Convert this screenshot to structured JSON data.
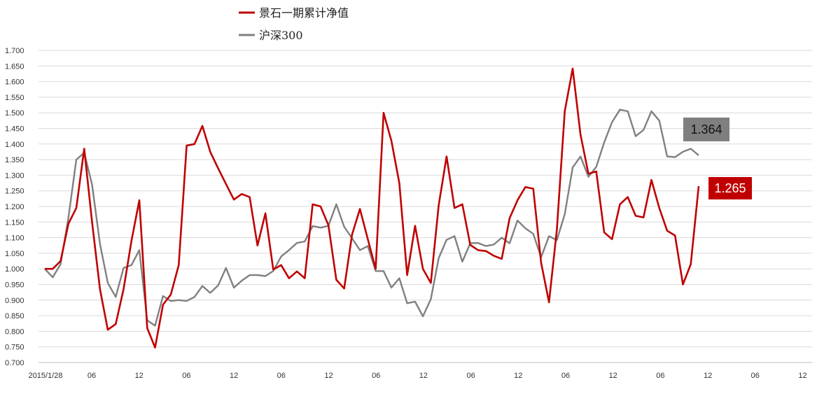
{
  "chart_data": {
    "type": "line",
    "title": "",
    "xlabel": "",
    "ylabel": "",
    "ylim": [
      0.7,
      1.7
    ],
    "y_ticks": [
      "1.700",
      "1.650",
      "1.600",
      "1.550",
      "1.500",
      "1.450",
      "1.400",
      "1.350",
      "1.300",
      "1.250",
      "1.200",
      "1.150",
      "1.100",
      "1.050",
      "1.000",
      "0.950",
      "0.900",
      "0.850",
      "0.800",
      "0.750",
      "0.700"
    ],
    "x_tick_labels": [
      "2015/1/28",
      "06",
      "12",
      "06",
      "12",
      "06",
      "12",
      "06",
      "12",
      "06",
      "12",
      "06",
      "12",
      "06",
      "12",
      "06",
      "12"
    ],
    "grid": "horizontal",
    "legend_position": "top",
    "series": [
      {
        "name": "景石一期累计净值",
        "color": "#c00000",
        "values": [
          1.0,
          1.0,
          1.025,
          1.145,
          1.195,
          1.385,
          1.15,
          0.935,
          0.805,
          0.823,
          0.935,
          1.09,
          1.22,
          0.81,
          0.748,
          0.885,
          0.918,
          1.012,
          1.395,
          1.4,
          1.458,
          1.375,
          1.322,
          1.272,
          1.222,
          1.24,
          1.23,
          1.075,
          1.178,
          0.998,
          1.012,
          0.97,
          0.992,
          0.97,
          1.207,
          1.2,
          1.14,
          0.965,
          0.937,
          1.11,
          1.192,
          1.095,
          1.0,
          1.5,
          1.41,
          1.275,
          0.98,
          1.138,
          1.0,
          0.955,
          1.205,
          1.36,
          1.195,
          1.207,
          1.077,
          1.06,
          1.057,
          1.042,
          1.032,
          1.162,
          1.22,
          1.262,
          1.257,
          1.02,
          0.893,
          1.125,
          1.505,
          1.642,
          1.43,
          1.305,
          1.312,
          1.117,
          1.095,
          1.207,
          1.23,
          1.17,
          1.165,
          1.285,
          1.195,
          1.122,
          1.107,
          0.95,
          1.015,
          1.265
        ]
      },
      {
        "name": "沪深300",
        "color": "#808080",
        "values": [
          1.0,
          0.973,
          1.015,
          1.165,
          1.35,
          1.372,
          1.27,
          1.08,
          0.955,
          0.91,
          1.003,
          1.012,
          1.06,
          0.835,
          0.818,
          0.913,
          0.897,
          0.9,
          0.897,
          0.91,
          0.945,
          0.923,
          0.947,
          1.003,
          0.94,
          0.962,
          0.98,
          0.98,
          0.977,
          0.993,
          1.04,
          1.06,
          1.083,
          1.088,
          1.137,
          1.132,
          1.138,
          1.207,
          1.135,
          1.098,
          1.06,
          1.073,
          0.993,
          0.993,
          0.94,
          0.97,
          0.89,
          0.895,
          0.848,
          0.903,
          1.035,
          1.093,
          1.105,
          1.023,
          1.082,
          1.083,
          1.073,
          1.078,
          1.1,
          1.082,
          1.155,
          1.13,
          1.112,
          1.037,
          1.105,
          1.092,
          1.175,
          1.325,
          1.36,
          1.295,
          1.327,
          1.405,
          1.47,
          1.51,
          1.505,
          1.425,
          1.445,
          1.505,
          1.475,
          1.36,
          1.358,
          1.375,
          1.385,
          1.364
        ]
      }
    ],
    "annotations": [
      {
        "text": "1.364",
        "series": "沪深300",
        "bg": "#7f7f7f",
        "fg": "#111111"
      },
      {
        "text": "1.265",
        "series": "景石一期累计净值",
        "bg": "#c00000",
        "fg": "#ffffff"
      }
    ]
  }
}
